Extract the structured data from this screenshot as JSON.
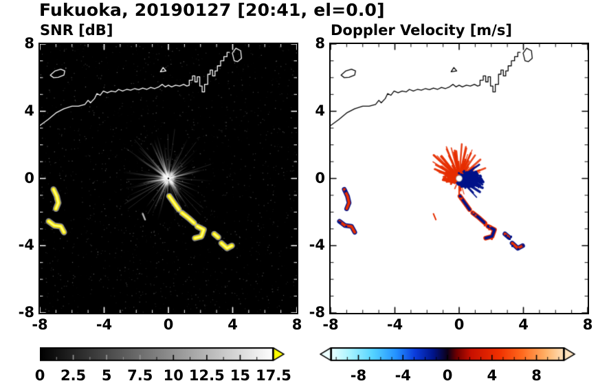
{
  "title": "Fukuoka, 20190127 [20:41, el=0.0]",
  "panels": [
    {
      "id": "snr",
      "title": "SNR [dB]",
      "x_tick_labels": [
        "-8",
        "-4",
        "0",
        "4",
        "8"
      ],
      "y_tick_labels": [
        "8",
        "4",
        "0",
        "-4",
        "-8"
      ],
      "colorbar": {
        "labels": [
          "0",
          "2.5",
          "5",
          "7.5",
          "10",
          "12.5",
          "15",
          "17.5"
        ]
      }
    },
    {
      "id": "velocity",
      "title": "Doppler Velocity [m/s]",
      "x_tick_labels": [
        "-8",
        "-4",
        "0",
        "4",
        "8"
      ],
      "y_tick_labels": [
        "8",
        "4",
        "0",
        "-4",
        "-8"
      ],
      "colorbar": {
        "labels": [
          "-8",
          "-4",
          "0",
          "4",
          "8"
        ]
      }
    }
  ],
  "chart_data": [
    {
      "type": "heatmap",
      "title": "SNR [dB]",
      "xlabel": "",
      "ylabel": "",
      "xlim": [
        -8,
        8
      ],
      "ylim": [
        -8,
        8
      ],
      "xticks": [
        -8,
        -4,
        0,
        4,
        8
      ],
      "yticks": [
        8,
        4,
        0,
        -4,
        -8
      ],
      "background": "#000000",
      "tick_color": "#ffffff",
      "coast_color": "#ffffff",
      "colorbar": {
        "min": 0,
        "max": 17.5,
        "tick_values": [
          0,
          2.5,
          5,
          7.5,
          10,
          12.5,
          15,
          17.5
        ],
        "colormap": "grayscale",
        "stops": [
          [
            0,
            "#000000"
          ],
          [
            1,
            "#ffffff"
          ]
        ],
        "over_color": "#ffff00"
      },
      "radar_center_km": [
        0,
        0
      ],
      "clutter": {
        "description": "ground-clutter rays radiating from radar at origin",
        "rays": 150,
        "max_km": 3.2
      },
      "echo_color": "#ffee00",
      "echo_tracks_km": [
        {
          "name": "west-arc-1",
          "pts": [
            [
              -7.15,
              -0.65
            ],
            [
              -6.95,
              -1.05
            ],
            [
              -6.85,
              -1.45
            ],
            [
              -7.0,
              -1.8
            ]
          ],
          "vel": "red"
        },
        {
          "name": "west-arc-2",
          "pts": [
            [
              -7.45,
              -2.55
            ],
            [
              -7.1,
              -2.8
            ],
            [
              -6.7,
              -2.85
            ],
            [
              -6.5,
              -3.2
            ]
          ],
          "vel": "red"
        },
        {
          "name": "southeast-chain-1",
          "pts": [
            [
              0.05,
              -1.05
            ],
            [
              0.35,
              -1.45
            ],
            [
              0.65,
              -1.85
            ]
          ],
          "vel": "navy"
        },
        {
          "name": "southeast-chain-2",
          "pts": [
            [
              0.85,
              -2.05
            ],
            [
              1.25,
              -2.35
            ],
            [
              1.6,
              -2.65
            ]
          ],
          "vel": "navy"
        },
        {
          "name": "southeast-chain-3",
          "pts": [
            [
              1.8,
              -2.85
            ],
            [
              2.2,
              -3.05
            ],
            [
              2.05,
              -3.45
            ],
            [
              1.65,
              -3.55
            ]
          ],
          "vel": "navy"
        },
        {
          "name": "southeast-blob-1",
          "pts": [
            [
              2.85,
              -3.3
            ],
            [
              3.1,
              -3.5
            ]
          ],
          "vel": "red"
        },
        {
          "name": "southeast-blob-2",
          "pts": [
            [
              3.3,
              -3.85
            ],
            [
              3.65,
              -4.15
            ],
            [
              3.95,
              -4.0
            ]
          ],
          "vel": "red"
        },
        {
          "name": "small-streak",
          "pts": [
            [
              -1.6,
              -2.1
            ],
            [
              -1.45,
              -2.45
            ]
          ],
          "vel": "faint",
          "snr": "faint"
        }
      ],
      "coastline_km": [
        [
          -8.0,
          3.15
        ],
        [
          -7.5,
          3.5
        ],
        [
          -7.0,
          3.9
        ],
        [
          -6.5,
          4.15
        ],
        [
          -6.0,
          4.3
        ],
        [
          -5.6,
          4.3
        ],
        [
          -5.2,
          4.4
        ],
        [
          -5.0,
          4.65
        ],
        [
          -4.85,
          4.5
        ],
        [
          -4.6,
          4.75
        ],
        [
          -4.45,
          5.05
        ],
        [
          -4.25,
          4.95
        ],
        [
          -4.05,
          5.2
        ],
        [
          -3.8,
          5.1
        ],
        [
          -3.55,
          5.2
        ],
        [
          -3.3,
          5.15
        ],
        [
          -3.1,
          5.3
        ],
        [
          -2.85,
          5.2
        ],
        [
          -2.6,
          5.3
        ],
        [
          -2.35,
          5.25
        ],
        [
          -2.1,
          5.35
        ],
        [
          -1.85,
          5.28
        ],
        [
          -1.6,
          5.38
        ],
        [
          -1.35,
          5.3
        ],
        [
          -1.1,
          5.42
        ],
        [
          -0.85,
          5.35
        ],
        [
          -0.6,
          5.45
        ],
        [
          -0.38,
          5.6
        ],
        [
          -0.2,
          5.45
        ],
        [
          0.0,
          5.55
        ],
        [
          0.2,
          5.45
        ],
        [
          0.45,
          5.55
        ],
        [
          0.7,
          5.5
        ],
        [
          0.95,
          5.6
        ],
        [
          1.15,
          5.5
        ],
        [
          1.3,
          5.55
        ],
        [
          1.3,
          5.85
        ],
        [
          1.5,
          5.85
        ],
        [
          1.5,
          6.1
        ],
        [
          1.65,
          6.1
        ],
        [
          1.65,
          5.75
        ],
        [
          1.8,
          5.75
        ],
        [
          1.8,
          6.05
        ],
        [
          1.95,
          6.05
        ],
        [
          1.95,
          5.5
        ],
        [
          2.1,
          5.5
        ],
        [
          2.1,
          5.15
        ],
        [
          2.25,
          5.15
        ],
        [
          2.25,
          5.6
        ],
        [
          2.45,
          5.6
        ],
        [
          2.45,
          6.2
        ],
        [
          2.6,
          6.2
        ],
        [
          2.6,
          6.45
        ],
        [
          2.75,
          6.45
        ],
        [
          2.75,
          6.1
        ],
        [
          2.9,
          6.1
        ],
        [
          2.9,
          6.4
        ],
        [
          3.05,
          6.4
        ],
        [
          3.05,
          6.7
        ],
        [
          3.25,
          6.7
        ],
        [
          3.25,
          7.0
        ],
        [
          3.45,
          7.0
        ],
        [
          3.45,
          7.25
        ],
        [
          3.65,
          7.25
        ],
        [
          3.65,
          7.5
        ],
        [
          3.8,
          7.5
        ]
      ],
      "islands_km": [
        [
          [
            -7.35,
            6.15
          ],
          [
            -7.05,
            6.4
          ],
          [
            -6.7,
            6.5
          ],
          [
            -6.45,
            6.4
          ],
          [
            -6.5,
            6.15
          ],
          [
            -6.85,
            6.02
          ],
          [
            -7.15,
            6.0
          ],
          [
            -7.35,
            6.15
          ]
        ],
        [
          [
            -0.5,
            6.35
          ],
          [
            -0.33,
            6.6
          ],
          [
            -0.15,
            6.4
          ],
          [
            -0.5,
            6.35
          ]
        ],
        [
          [
            4.1,
            7.0
          ],
          [
            3.98,
            7.45
          ],
          [
            4.2,
            7.75
          ],
          [
            4.5,
            7.6
          ],
          [
            4.55,
            7.15
          ],
          [
            4.3,
            6.95
          ],
          [
            4.1,
            7.0
          ]
        ]
      ]
    },
    {
      "type": "heatmap",
      "title": "Doppler Velocity [m/s]",
      "xlabel": "",
      "ylabel": "",
      "xlim": [
        -8,
        8
      ],
      "ylim": [
        -8,
        8
      ],
      "xticks": [
        -8,
        -4,
        0,
        4,
        8
      ],
      "yticks": [
        8,
        4,
        0,
        -4,
        -8
      ],
      "background": "#ffffff",
      "tick_color": "#000000",
      "coast_color": "#000000",
      "colorbar": {
        "min": -10.5,
        "max": 10.5,
        "tick_values": [
          -8,
          -4,
          0,
          4,
          8
        ],
        "colormap": "doppler (pale-cyan / cyan / blue / navy / near-black / dark-red / red / orange / peach)",
        "stops": [
          [
            0,
            "#ecffff"
          ],
          [
            0.08,
            "#aaf4ff"
          ],
          [
            0.18,
            "#55d4ff"
          ],
          [
            0.28,
            "#2492ff"
          ],
          [
            0.36,
            "#0b3ddd"
          ],
          [
            0.44,
            "#001489"
          ],
          [
            0.5,
            "#0d0018"
          ],
          [
            0.54,
            "#700000"
          ],
          [
            0.6,
            "#c81000"
          ],
          [
            0.72,
            "#f03000"
          ],
          [
            0.82,
            "#ff6a1e"
          ],
          [
            0.92,
            "#ffb066"
          ],
          [
            1,
            "#ffe3bd"
          ]
        ],
        "under_color": "#ecffff",
        "over_color": "#ffe3bd"
      },
      "positive_color": "#e62e00",
      "negative_color": "#001289",
      "clutter": {
        "description": "velocity couplet around radar: red (away) fan over the upper half, navy (toward) lobe east of the radar",
        "red_fan_deg": [
          15,
          165
        ],
        "red_max_km": 2.2,
        "navy_sector_deg": [
          -55,
          35
        ],
        "navy_max_km": 1.6,
        "navy_blob_center_km": [
          0.55,
          -0.08
        ],
        "red_blob_center_km": [
          -0.5,
          0.05
        ]
      },
      "echo_tracks_km": "same locations as SNR panel, coloured red/navy by velocity sign"
    }
  ]
}
